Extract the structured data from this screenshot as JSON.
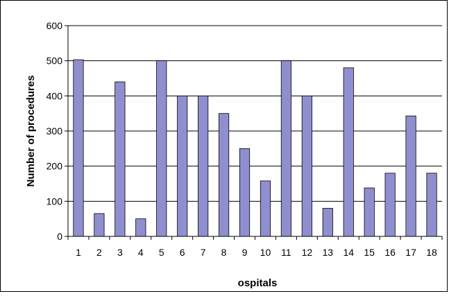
{
  "chart_data": {
    "type": "bar",
    "title": "",
    "xlabel": "ospitals",
    "ylabel": "Number of procedures",
    "categories": [
      "1",
      "2",
      "3",
      "4",
      "5",
      "6",
      "7",
      "8",
      "9",
      "10",
      "11",
      "12",
      "13",
      "14",
      "15",
      "16",
      "17",
      "18"
    ],
    "values": [
      503,
      65,
      440,
      50,
      500,
      400,
      400,
      350,
      250,
      158,
      500,
      400,
      80,
      480,
      138,
      180,
      343,
      180
    ],
    "ylim": [
      0,
      600
    ],
    "yticks": [
      0,
      100,
      200,
      300,
      400,
      500,
      600
    ],
    "grid": true,
    "legend": "none",
    "colors": {
      "bar_fill": "#8f8fd0",
      "bar_stroke": "#000000",
      "grid": "#000000",
      "background": "#ffffff"
    }
  }
}
